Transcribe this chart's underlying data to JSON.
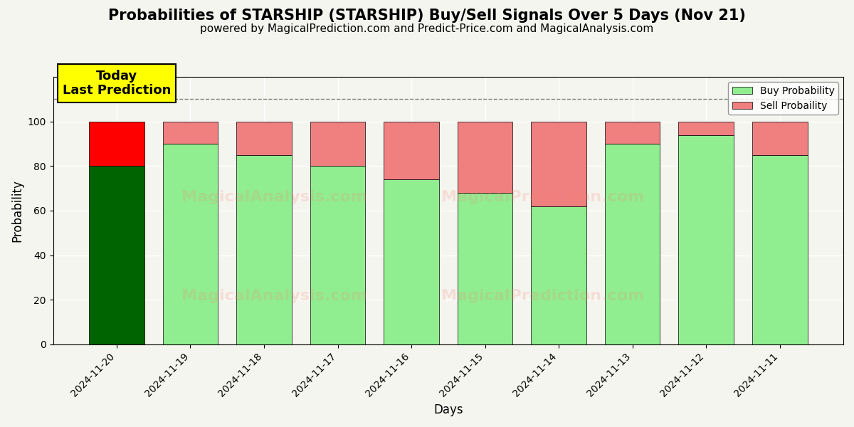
{
  "title": "Probabilities of STARSHIP (STARSHIP) Buy/Sell Signals Over 5 Days (Nov 21)",
  "subtitle": "powered by MagicalPrediction.com and Predict-Price.com and MagicalAnalysis.com",
  "xlabel": "Days",
  "ylabel": "Probability",
  "dates": [
    "2024-11-20",
    "2024-11-19",
    "2024-11-18",
    "2024-11-17",
    "2024-11-16",
    "2024-11-15",
    "2024-11-14",
    "2024-11-13",
    "2024-11-12",
    "2024-11-11"
  ],
  "buy_values": [
    80,
    90,
    85,
    80,
    74,
    68,
    62,
    90,
    94,
    85
  ],
  "sell_values": [
    20,
    10,
    15,
    20,
    26,
    32,
    38,
    10,
    6,
    15
  ],
  "today_bar_buy_color": "#006400",
  "today_bar_sell_color": "#ff0000",
  "buy_color_light": "#90EE90",
  "sell_color_light": "#F08080",
  "annotation_text": "Today\nLast Prediction",
  "annotation_bg": "#ffff00",
  "dashed_line_y": 110,
  "ylim": [
    0,
    120
  ],
  "yticks": [
    0,
    20,
    40,
    60,
    80,
    100
  ],
  "watermark1": "MagicalAnalysis.com",
  "watermark2": "MagicalPrediction.com",
  "title_fontsize": 15,
  "subtitle_fontsize": 11,
  "legend_buy_label": "Buy Probability",
  "legend_sell_label": "Sell Probaility",
  "bar_width": 0.75,
  "bg_color": "#f5f5f0"
}
